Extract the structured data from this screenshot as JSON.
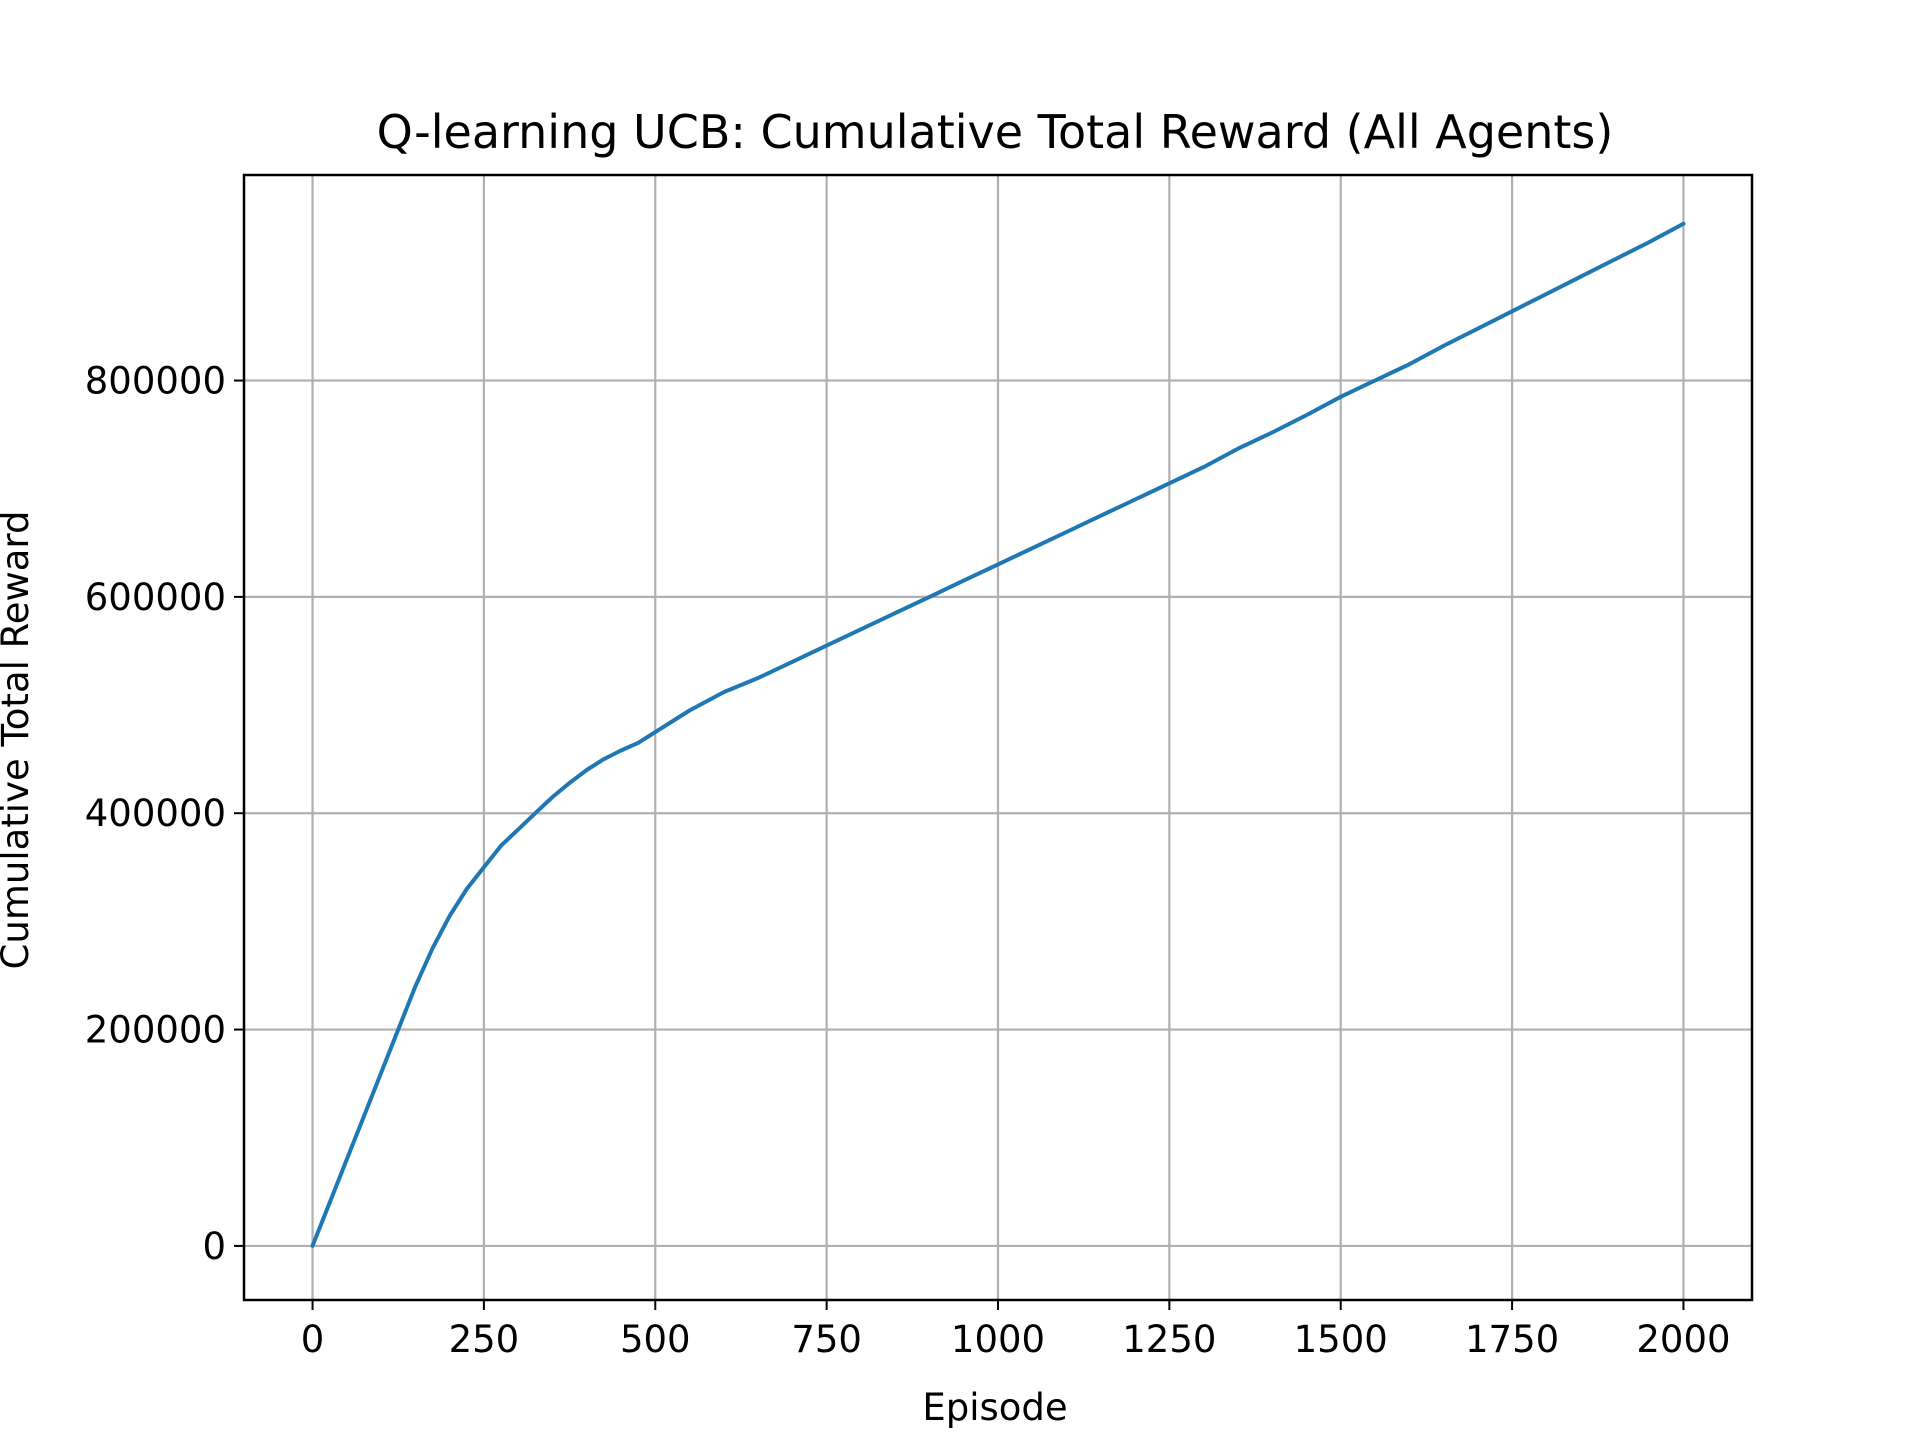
{
  "chart_data": {
    "type": "line",
    "title": "Q-learning UCB: Cumulative Total Reward (All Agents)",
    "xlabel": "Episode",
    "ylabel": "Cumulative Total Reward",
    "xlim": [
      -100,
      2100
    ],
    "ylim": [
      -50000,
      990000
    ],
    "xticks": [
      0,
      250,
      500,
      750,
      1000,
      1250,
      1500,
      1750,
      2000
    ],
    "yticks": [
      0,
      200000,
      400000,
      600000,
      800000
    ],
    "xtick_labels": [
      "0",
      "250",
      "500",
      "750",
      "1000",
      "1250",
      "1500",
      "1750",
      "2000"
    ],
    "ytick_labels": [
      "0",
      "200000",
      "400000",
      "600000",
      "800000"
    ],
    "grid": true,
    "legend": "none",
    "series": [
      {
        "color": "#1f77b4",
        "x": [
          0,
          25,
          50,
          75,
          100,
          125,
          150,
          175,
          200,
          225,
          250,
          275,
          300,
          325,
          350,
          375,
          400,
          425,
          450,
          475,
          500,
          550,
          600,
          650,
          700,
          750,
          800,
          850,
          900,
          950,
          1000,
          1050,
          1100,
          1150,
          1200,
          1250,
          1300,
          1350,
          1400,
          1450,
          1500,
          1550,
          1600,
          1650,
          1700,
          1750,
          1800,
          1850,
          1900,
          1950,
          2000
        ],
        "y": [
          0,
          40000,
          80000,
          120000,
          160000,
          200000,
          240000,
          275000,
          305000,
          330000,
          350000,
          370000,
          385000,
          400000,
          415000,
          428000,
          440000,
          450000,
          458000,
          465000,
          475000,
          495000,
          512000,
          525000,
          540000,
          555000,
          570000,
          585000,
          600000,
          615000,
          630000,
          645000,
          660000,
          675000,
          690000,
          705000,
          720000,
          737000,
          752000,
          768000,
          785000,
          800000,
          815000,
          832000,
          848000,
          864000,
          880000,
          896000,
          912000,
          928000,
          945000
        ]
      }
    ]
  }
}
